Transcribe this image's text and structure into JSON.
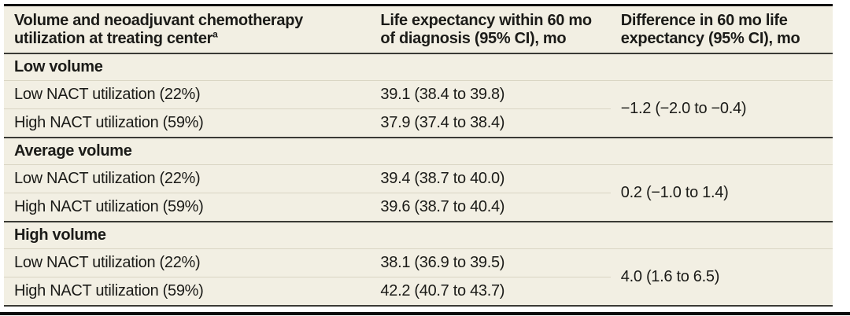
{
  "table": {
    "columns": [
      {
        "label": "Volume and neoadjuvant chemotherapy\nutilization at treating center",
        "superscript": "a"
      },
      {
        "label": "Life expectancy within 60 mo\nof diagnosis (95% CI), mo"
      },
      {
        "label": "Difference in 60 mo life\nexpectancy (95% CI), mo"
      }
    ],
    "groups": [
      {
        "header": "Low volume",
        "rows": [
          {
            "label": "Low NACT utilization (22%)",
            "life_expectancy": "39.1 (38.4 to 39.8)"
          },
          {
            "label": "High NACT utilization (59%)",
            "life_expectancy": "37.9 (37.4 to 38.4)"
          }
        ],
        "difference": "−1.2 (−2.0 to −0.4)"
      },
      {
        "header": "Average volume",
        "rows": [
          {
            "label": "Low NACT utilization (22%)",
            "life_expectancy": "39.4 (38.7 to 40.0)"
          },
          {
            "label": "High NACT utilization (59%)",
            "life_expectancy": "39.6 (38.7 to 40.4)"
          }
        ],
        "difference": "0.2 (−1.0 to 1.4)"
      },
      {
        "header": "High volume",
        "rows": [
          {
            "label": "Low NACT utilization (22%)",
            "life_expectancy": "38.1 (36.9 to 39.5)"
          },
          {
            "label": "High NACT utilization (59%)",
            "life_expectancy": "42.2 (40.7 to 43.7)"
          }
        ],
        "difference": "4.0 (1.6 to 6.5)"
      }
    ]
  },
  "colors": {
    "table_background": "#f2efe3",
    "text": "#1b1b18",
    "light_divider": "#d9d5c3",
    "dark_divider": "#3a3a35",
    "top_rule": "#111111",
    "bottom_bar": "#0a0a0a"
  }
}
